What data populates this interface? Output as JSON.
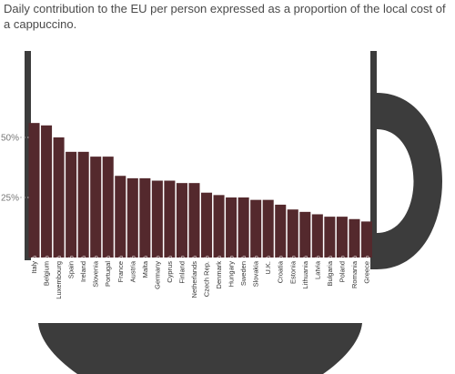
{
  "chart_data": {
    "type": "bar",
    "title": "Daily contribution to the EU per person expressed as a proportion of the local cost of a cappuccino.",
    "xlabel": "",
    "ylabel": "",
    "ylim": [
      0,
      60
    ],
    "y_ticks": [
      {
        "value": 25,
        "label": "25%"
      },
      {
        "value": 50,
        "label": "50%"
      }
    ],
    "grid": false,
    "value_suffix": "%",
    "colors": {
      "bar": "#54292d",
      "bar_label": "#ffffff",
      "cup": "#3c3c3c",
      "gridline": "#b3b3b3",
      "tick_label": "#777777"
    },
    "categories": [
      "Italy",
      "Belgium",
      "Luxembourg",
      "Spain",
      "Ireland",
      "Slovenia",
      "Portugal",
      "France",
      "Austria",
      "Malta",
      "Germany",
      "Cyprus",
      "Finland",
      "Netherlands",
      "Czech Rep.",
      "Denmark",
      "Hungary",
      "Sweden",
      "Slovakia",
      "U.K.",
      "Croatia",
      "Estonia",
      "Lithuania",
      "Latvia",
      "Bulgaria",
      "Poland",
      "Romania",
      "Greece"
    ],
    "values": [
      56,
      55,
      50,
      44,
      44,
      42,
      42,
      34,
      33,
      33,
      32,
      32,
      31,
      31,
      27,
      26,
      25,
      25,
      24,
      24,
      22,
      20,
      19,
      18,
      17,
      17,
      16,
      15
    ]
  }
}
